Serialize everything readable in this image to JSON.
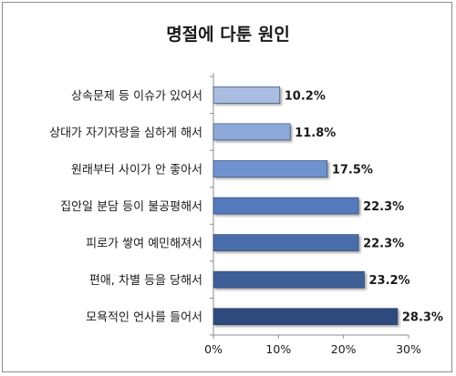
{
  "chart_data": {
    "type": "bar",
    "orientation": "horizontal",
    "title": "명절에 다툰 원인",
    "categories": [
      "상속문제 등 이슈가 있어서",
      "상대가 자기자랑을 심하게 해서",
      "원래부터 사이가 안 좋아서",
      "집안일 분담 등이 불공평해서",
      "피로가 쌓여 예민해져서",
      "편애, 차별 등을 당해서",
      "모욕적인 언사를 들어서"
    ],
    "values": [
      10.2,
      11.8,
      17.5,
      22.3,
      22.3,
      23.2,
      28.3
    ],
    "value_labels": [
      "10.2%",
      "11.8%",
      "17.5%",
      "22.3%",
      "22.3%",
      "23.2%",
      "28.3%"
    ],
    "xlim": [
      0,
      30
    ],
    "xticks": [
      "0%",
      "10%",
      "20%",
      "30%"
    ],
    "grid": false,
    "colors": [
      "#a9bde0",
      "#8ea9d8",
      "#6f92cf",
      "#5479bd",
      "#4a6dab",
      "#3e5e98",
      "#2f4a7c"
    ]
  }
}
